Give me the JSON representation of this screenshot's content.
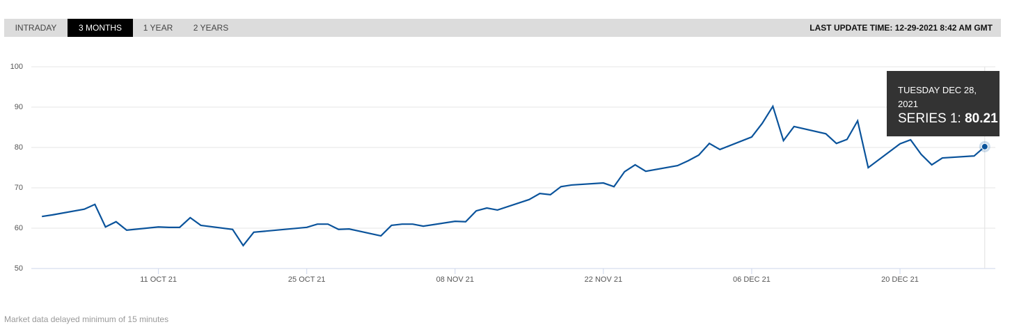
{
  "tabs": [
    "INTRADAY",
    "3 MONTHS",
    "1 YEAR",
    "2 YEARS"
  ],
  "active_tab": 1,
  "last_update": "LAST UPDATE TIME: 12-29-2021 8:42 AM GMT",
  "footer": "Market data delayed minimum of 15 minutes",
  "chart_data": {
    "type": "line",
    "color": "#0a539b",
    "grid": true,
    "x": [
      "2021-09-30",
      "2021-10-01",
      "2021-10-04",
      "2021-10-05",
      "2021-10-06",
      "2021-10-07",
      "2021-10-08",
      "2021-10-11",
      "2021-10-12",
      "2021-10-13",
      "2021-10-14",
      "2021-10-15",
      "2021-10-18",
      "2021-10-19",
      "2021-10-20",
      "2021-10-25",
      "2021-10-26",
      "2021-10-27",
      "2021-10-28",
      "2021-10-29",
      "2021-11-01",
      "2021-11-02",
      "2021-11-03",
      "2021-11-04",
      "2021-11-05",
      "2021-11-08",
      "2021-11-09",
      "2021-11-10",
      "2021-11-11",
      "2021-11-12",
      "2021-11-15",
      "2021-11-16",
      "2021-11-17",
      "2021-11-18",
      "2021-11-19",
      "2021-11-22",
      "2021-11-23",
      "2021-11-24",
      "2021-11-25",
      "2021-11-26",
      "2021-11-29",
      "2021-11-30",
      "2021-12-01",
      "2021-12-02",
      "2021-12-03",
      "2021-12-06",
      "2021-12-07",
      "2021-12-08",
      "2021-12-09",
      "2021-12-10",
      "2021-12-13",
      "2021-12-14",
      "2021-12-15",
      "2021-12-16",
      "2021-12-17",
      "2021-12-20",
      "2021-12-21",
      "2021-12-22",
      "2021-12-23",
      "2021-12-24",
      "2021-12-27",
      "2021-12-28"
    ],
    "values": [
      62.9,
      63.3,
      64.7,
      65.9,
      60.3,
      61.6,
      59.5,
      60.3,
      60.2,
      60.2,
      62.6,
      60.7,
      59.7,
      55.7,
      59.0,
      60.2,
      61.0,
      61.0,
      59.7,
      59.8,
      58.1,
      60.7,
      61.0,
      61.0,
      60.5,
      61.7,
      61.6,
      64.3,
      65.0,
      64.5,
      67.1,
      68.6,
      68.3,
      70.3,
      70.7,
      71.2,
      70.3,
      74.0,
      75.7,
      74.1,
      75.5,
      76.7,
      78.1,
      81.0,
      79.5,
      82.6,
      86.0,
      90.2,
      81.7,
      85.2,
      83.4,
      81.0,
      82.0,
      86.6,
      75.0,
      80.9,
      81.9,
      78.3,
      75.7,
      77.4,
      77.9,
      80.21
    ],
    "xlim": [
      "2021-09-29",
      "2021-12-29"
    ],
    "xticks": [
      {
        "value": "2021-10-11",
        "label": "11 OCT 21"
      },
      {
        "value": "2021-10-25",
        "label": "25 OCT 21"
      },
      {
        "value": "2021-11-08",
        "label": "08 NOV 21"
      },
      {
        "value": "2021-11-22",
        "label": "22 NOV 21"
      },
      {
        "value": "2021-12-06",
        "label": "06 DEC 21"
      },
      {
        "value": "2021-12-20",
        "label": "20 DEC 21"
      }
    ],
    "ylim": [
      50,
      100
    ],
    "yticks": [
      50,
      60,
      70,
      80,
      90,
      100
    ],
    "tooltip": {
      "title": "TUESDAY DEC 28, 2021",
      "label": "SERIES 1:"
    }
  }
}
